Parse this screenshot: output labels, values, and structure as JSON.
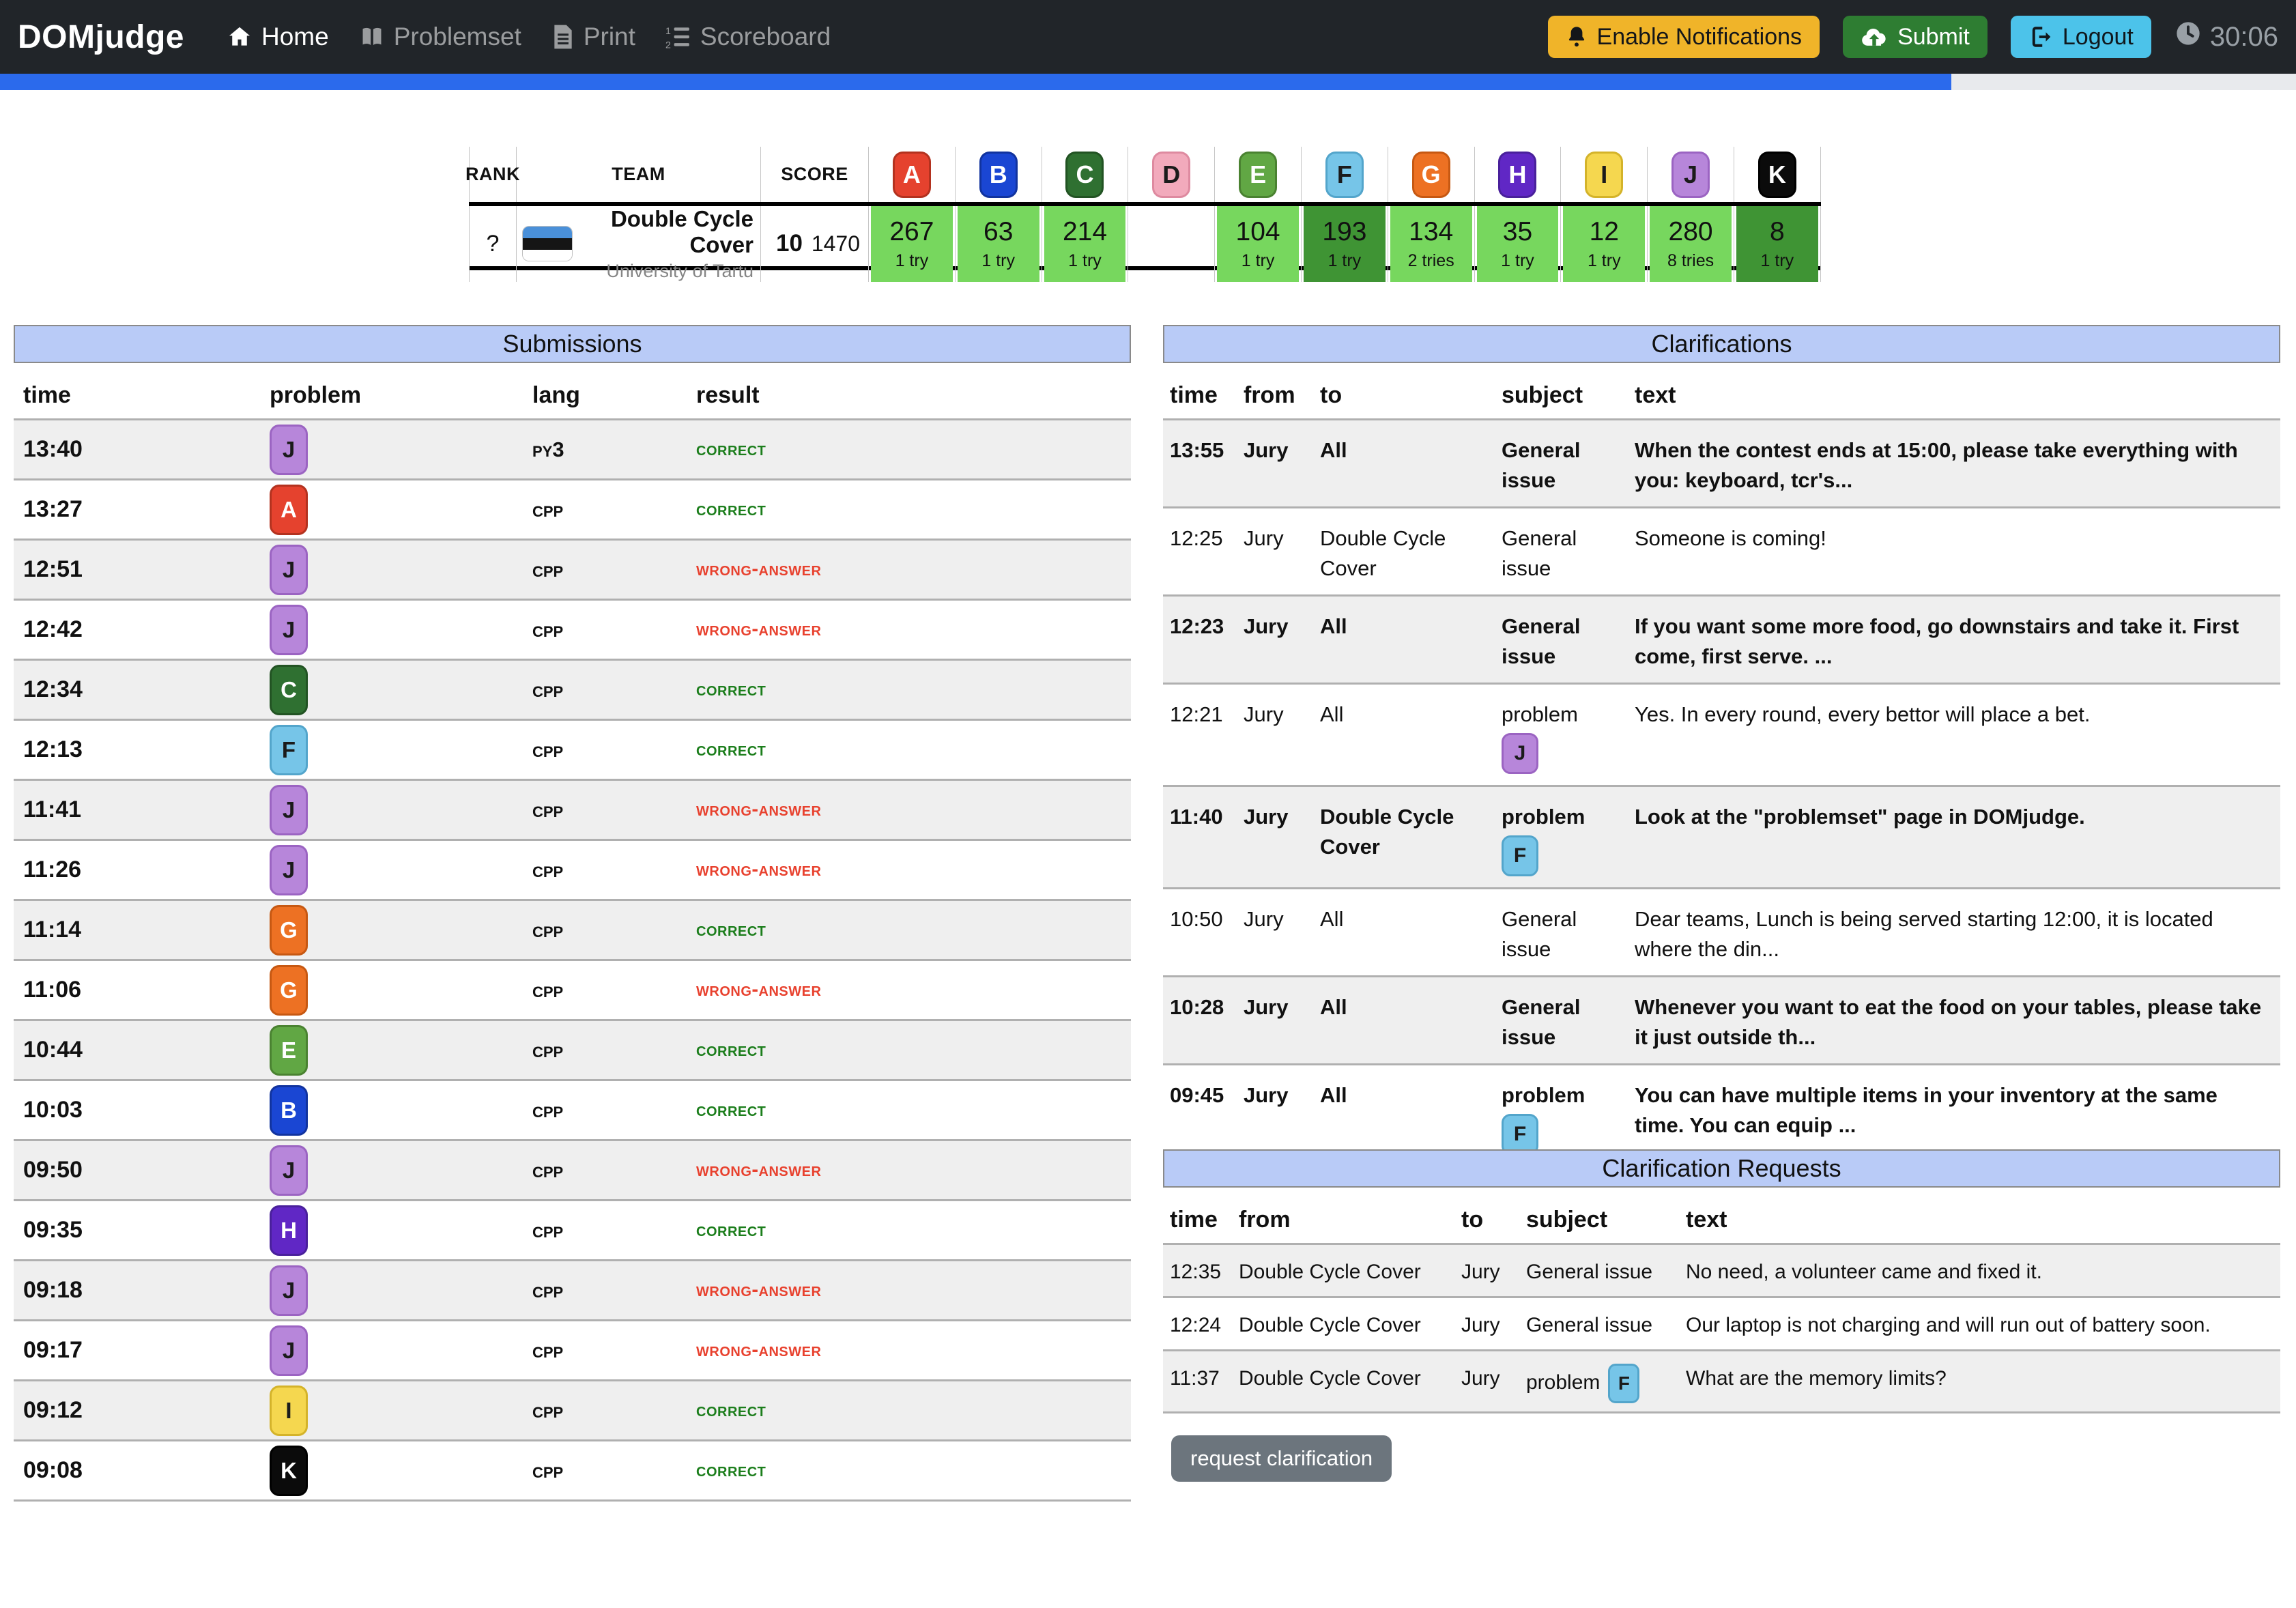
{
  "colors": {
    "navbar_bg": "#212529",
    "nav_link": "rgba(255,255,255,0.55)",
    "progress_fill": "#2b6aec",
    "progress_track": "#e8eaed",
    "panel_header_bg": "#b9cbf7",
    "panel_header_border": "#8a8a8a",
    "row_alt": "#efefef",
    "row_line": "#b0b0b0",
    "correct": "#1c7e1c",
    "wrong": "#e8412e",
    "warning_btn": "#f0b429",
    "success_btn": "#2e7d32",
    "info_btn": "#4cc3ea",
    "secondary_btn": "#6c757d",
    "cell_solved": "#77d75e",
    "cell_first_to_solve": "#3f9434",
    "affiliation_text": "#858585",
    "clock_text": "#99a0a6"
  },
  "navbar": {
    "brand": "DOMjudge",
    "links": [
      {
        "label": "Home",
        "icon": "home-icon",
        "active": true
      },
      {
        "label": "Problemset",
        "icon": "book-icon",
        "active": false
      },
      {
        "label": "Print",
        "icon": "print-icon",
        "active": false
      },
      {
        "label": "Scoreboard",
        "icon": "list-ol-icon",
        "active": false
      }
    ],
    "buttons": {
      "notifications": "Enable Notifications",
      "submit": "Submit",
      "logout": "Logout"
    },
    "remaining_time": "30:06",
    "progress_percent": 85
  },
  "scoreboard": {
    "headers": {
      "rank": "RANK",
      "team": "TEAM",
      "score": "SCORE"
    },
    "problems": [
      {
        "letter": "A",
        "bg": "#e5422e",
        "border": "#b3321f",
        "fg": "#ffffff"
      },
      {
        "letter": "B",
        "bg": "#1a46d3",
        "border": "#11339e",
        "fg": "#ffffff"
      },
      {
        "letter": "C",
        "bg": "#2f7031",
        "border": "#225323",
        "fg": "#ffffff"
      },
      {
        "letter": "D",
        "bg": "#f2aabc",
        "border": "#de8aa0",
        "fg": "#1b1b1b"
      },
      {
        "letter": "E",
        "bg": "#61a744",
        "border": "#4a8231",
        "fg": "#ffffff"
      },
      {
        "letter": "F",
        "bg": "#76c5e8",
        "border": "#53a5cb",
        "fg": "#1b1b1b"
      },
      {
        "letter": "G",
        "bg": "#ed7123",
        "border": "#c65812",
        "fg": "#ffffff"
      },
      {
        "letter": "H",
        "bg": "#6027c5",
        "border": "#49209b",
        "fg": "#ffffff"
      },
      {
        "letter": "I",
        "bg": "#f5d74f",
        "border": "#d4b32a",
        "fg": "#1b1b1b"
      },
      {
        "letter": "J",
        "bg": "#b786da",
        "border": "#9b64c2",
        "fg": "#1b1b1b"
      },
      {
        "letter": "K",
        "bg": "#0b0b0b",
        "border": "#000000",
        "fg": "#ffffff"
      }
    ],
    "team_row": {
      "rank": "?",
      "team": "Double Cycle Cover",
      "affiliation": "University of Tartu",
      "flag": "Estonia",
      "flag_colors": [
        "#4a90d9",
        "#151515",
        "#ffffff"
      ],
      "num_solved": "10",
      "total_time": "1470",
      "cells": [
        {
          "problem": "A",
          "score": "267",
          "tries": "1 try",
          "state": "solved"
        },
        {
          "problem": "B",
          "score": "63",
          "tries": "1 try",
          "state": "solved"
        },
        {
          "problem": "C",
          "score": "214",
          "tries": "1 try",
          "state": "solved"
        },
        {
          "problem": "D",
          "score": "",
          "tries": "",
          "state": "none"
        },
        {
          "problem": "E",
          "score": "104",
          "tries": "1 try",
          "state": "solved"
        },
        {
          "problem": "F",
          "score": "193",
          "tries": "1 try",
          "state": "first"
        },
        {
          "problem": "G",
          "score": "134",
          "tries": "2 tries",
          "state": "solved"
        },
        {
          "problem": "H",
          "score": "35",
          "tries": "1 try",
          "state": "solved"
        },
        {
          "problem": "I",
          "score": "12",
          "tries": "1 try",
          "state": "solved"
        },
        {
          "problem": "J",
          "score": "280",
          "tries": "8 tries",
          "state": "solved"
        },
        {
          "problem": "K",
          "score": "8",
          "tries": "1 try",
          "state": "first"
        }
      ]
    }
  },
  "submissions": {
    "title": "Submissions",
    "headers": [
      "time",
      "problem",
      "lang",
      "result"
    ],
    "rows": [
      {
        "time": "13:40",
        "problem": "J",
        "lang": "py3",
        "result": "correct"
      },
      {
        "time": "13:27",
        "problem": "A",
        "lang": "cpp",
        "result": "correct"
      },
      {
        "time": "12:51",
        "problem": "J",
        "lang": "cpp",
        "result": "wrong-answer"
      },
      {
        "time": "12:42",
        "problem": "J",
        "lang": "cpp",
        "result": "wrong-answer"
      },
      {
        "time": "12:34",
        "problem": "C",
        "lang": "cpp",
        "result": "correct"
      },
      {
        "time": "12:13",
        "problem": "F",
        "lang": "cpp",
        "result": "correct"
      },
      {
        "time": "11:41",
        "problem": "J",
        "lang": "cpp",
        "result": "wrong-answer"
      },
      {
        "time": "11:26",
        "problem": "J",
        "lang": "cpp",
        "result": "wrong-answer"
      },
      {
        "time": "11:14",
        "problem": "G",
        "lang": "cpp",
        "result": "correct"
      },
      {
        "time": "11:06",
        "problem": "G",
        "lang": "cpp",
        "result": "wrong-answer"
      },
      {
        "time": "10:44",
        "problem": "E",
        "lang": "cpp",
        "result": "correct"
      },
      {
        "time": "10:03",
        "problem": "B",
        "lang": "cpp",
        "result": "correct"
      },
      {
        "time": "09:50",
        "problem": "J",
        "lang": "cpp",
        "result": "wrong-answer"
      },
      {
        "time": "09:35",
        "problem": "H",
        "lang": "cpp",
        "result": "correct"
      },
      {
        "time": "09:18",
        "problem": "J",
        "lang": "cpp",
        "result": "wrong-answer"
      },
      {
        "time": "09:17",
        "problem": "J",
        "lang": "cpp",
        "result": "wrong-answer"
      },
      {
        "time": "09:12",
        "problem": "I",
        "lang": "cpp",
        "result": "correct"
      },
      {
        "time": "09:08",
        "problem": "K",
        "lang": "cpp",
        "result": "correct"
      }
    ]
  },
  "clarifications": {
    "title": "Clarifications",
    "headers": [
      "time",
      "from",
      "to",
      "subject",
      "text"
    ],
    "rows": [
      {
        "time": "13:55",
        "from": "Jury",
        "to": "All",
        "subject": "General issue",
        "problem": null,
        "unread": true,
        "text": "When the contest ends at 15:00, please take everything with you: keyboard, tcr's..."
      },
      {
        "time": "12:25",
        "from": "Jury",
        "to": "Double Cycle Cover",
        "subject": "General issue",
        "problem": null,
        "unread": false,
        "text": "Someone is coming!"
      },
      {
        "time": "12:23",
        "from": "Jury",
        "to": "All",
        "subject": "General issue",
        "problem": null,
        "unread": true,
        "text": "If you want some more food, go downstairs and take it. First come, first serve. ..."
      },
      {
        "time": "12:21",
        "from": "Jury",
        "to": "All",
        "subject": "problem",
        "problem": "J",
        "unread": false,
        "text": "Yes. In every round, every bettor will place a bet."
      },
      {
        "time": "11:40",
        "from": "Jury",
        "to": "Double Cycle Cover",
        "subject": "problem",
        "problem": "F",
        "unread": true,
        "text": "Look at the \"problemset\" page in DOMjudge."
      },
      {
        "time": "10:50",
        "from": "Jury",
        "to": "All",
        "subject": "General issue",
        "problem": null,
        "unread": false,
        "text": "Dear teams, Lunch is being served starting 12:00, it is located where the din..."
      },
      {
        "time": "10:28",
        "from": "Jury",
        "to": "All",
        "subject": "General issue",
        "problem": null,
        "unread": true,
        "text": "Whenever you want to eat the food on your tables, please take it just outside th..."
      },
      {
        "time": "09:45",
        "from": "Jury",
        "to": "All",
        "subject": "problem",
        "problem": "F",
        "unread": true,
        "text": "You can have multiple items in your inventory at the same time. You can equip ..."
      }
    ]
  },
  "clarification_requests": {
    "title": "Clarification Requests",
    "headers": [
      "time",
      "from",
      "to",
      "subject",
      "text"
    ],
    "rows": [
      {
        "time": "12:35",
        "from": "Double Cycle Cover",
        "to": "Jury",
        "subject": "General issue",
        "problem": null,
        "text": "No need, a volunteer came and fixed it."
      },
      {
        "time": "12:24",
        "from": "Double Cycle Cover",
        "to": "Jury",
        "subject": "General issue",
        "problem": null,
        "text": "Our laptop is not charging and will run out of battery soon."
      },
      {
        "time": "11:37",
        "from": "Double Cycle Cover",
        "to": "Jury",
        "subject": "problem",
        "problem": "F",
        "text": "What are the memory limits?"
      }
    ],
    "button_label": "request clarification"
  }
}
